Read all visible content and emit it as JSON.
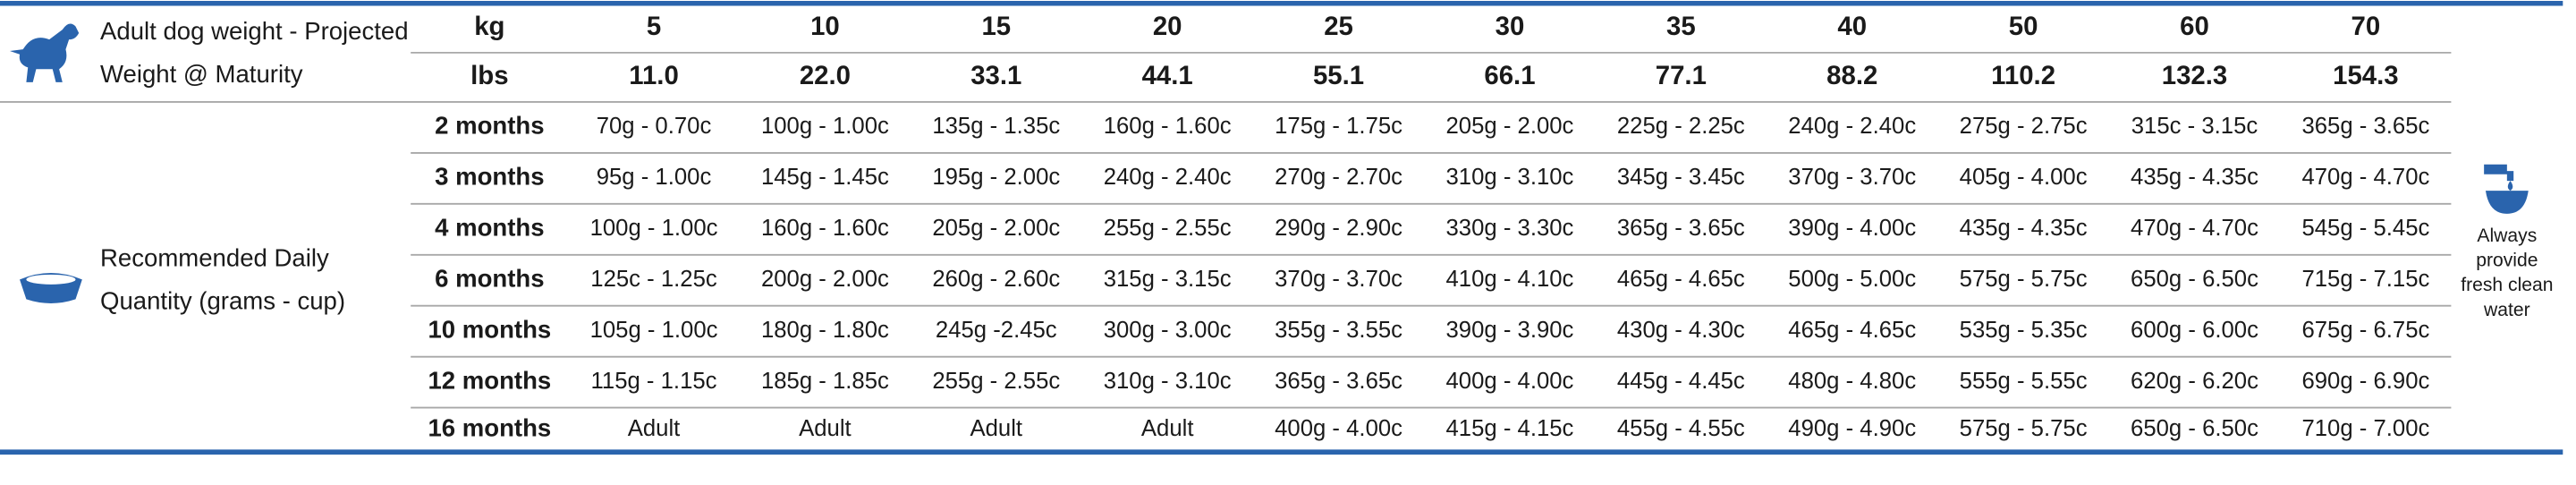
{
  "header": {
    "weight_label_lines": [
      "Adult dog weight - Projected",
      "Weight @ Maturity"
    ],
    "kg_label": "kg",
    "lbs_label": "lbs",
    "kg": [
      "5",
      "10",
      "15",
      "20",
      "25",
      "30",
      "35",
      "40",
      "50",
      "60",
      "70"
    ],
    "lbs": [
      "11.0",
      "22.0",
      "33.1",
      "44.1",
      "55.1",
      "66.1",
      "77.1",
      "88.2",
      "110.2",
      "132.3",
      "154.3"
    ]
  },
  "quantity_label_lines": [
    "Recommended Daily",
    "Quantity (grams - cup)"
  ],
  "table": {
    "rows": [
      [
        "2 months",
        "70g - 0.70c",
        "100g - 1.00c",
        "135g - 1.35c",
        "160g - 1.60c",
        "175g - 1.75c",
        "205g - 2.00c",
        "225g - 2.25c",
        "240g - 2.40c",
        "275g - 2.75c",
        "315c - 3.15c",
        "365g - 3.65c"
      ],
      [
        "3 months",
        "95g - 1.00c",
        "145g - 1.45c",
        "195g - 2.00c",
        "240g - 2.40c",
        "270g - 2.70c",
        "310g - 3.10c",
        "345g - 3.45c",
        "370g - 3.70c",
        "405g - 4.00c",
        "435g - 4.35c",
        "470g - 4.70c"
      ],
      [
        "4 months",
        "100g - 1.00c",
        "160g - 1.60c",
        "205g - 2.00c",
        "255g - 2.55c",
        "290g - 2.90c",
        "330g - 3.30c",
        "365g - 3.65c",
        "390g - 4.00c",
        "435g - 4.35c",
        "470g - 4.70c",
        "545g - 5.45c"
      ],
      [
        "6 months",
        "125c - 1.25c",
        "200g - 2.00c",
        "260g - 2.60c",
        "315g - 3.15c",
        "370g - 3.70c",
        "410g - 4.10c",
        "465g - 4.65c",
        "500g - 5.00c",
        "575g - 5.75c",
        "650g - 6.50c",
        "715g - 7.15c"
      ],
      [
        "10 months",
        "105g - 1.00c",
        "180g - 1.80c",
        "245g -2.45c",
        "300g - 3.00c",
        "355g - 3.55c",
        "390g - 3.90c",
        "430g - 4.30c",
        "465g - 4.65c",
        "535g - 5.35c",
        "600g - 6.00c",
        "675g - 6.75c"
      ],
      [
        "12 months",
        "115g - 1.15c",
        "185g - 1.85c",
        "255g - 2.55c",
        "310g - 3.10c",
        "365g - 3.65c",
        "400g - 4.00c",
        "445g - 4.45c",
        "480g - 4.80c",
        "555g - 5.55c",
        "620g - 6.20c",
        "690g - 6.90c"
      ],
      [
        "16 months",
        "Adult",
        "Adult",
        "Adult",
        "Adult",
        "400g - 4.00c",
        "415g - 4.15c",
        "455g - 4.55c",
        "490g - 4.90c",
        "575g - 5.75c",
        "650g - 6.50c",
        "710g - 7.00c"
      ]
    ]
  },
  "water_note_lines": [
    "Always",
    "provide",
    "fresh clean",
    "water"
  ]
}
